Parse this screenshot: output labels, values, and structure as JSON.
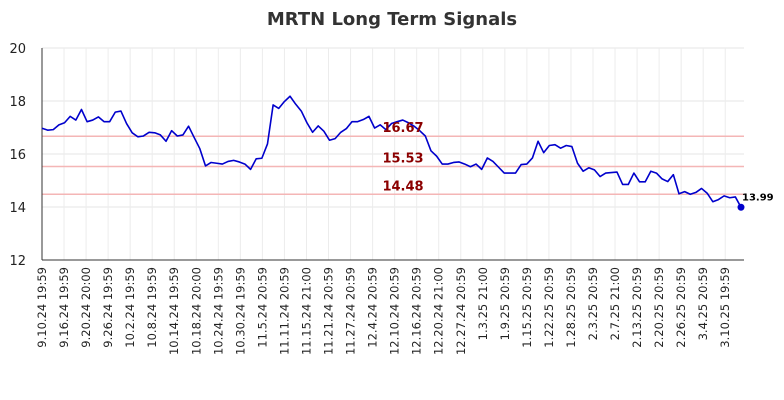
{
  "chart_data": {
    "type": "line",
    "title": "MRTN Long Term Signals",
    "ylim": [
      12,
      20
    ],
    "yticks": [
      "12",
      "14",
      "16",
      "18",
      "20"
    ],
    "xtick_labels": [
      "9.10.24 19:59",
      "9.16.24 19:59",
      "9.20.24 20:00",
      "9.26.24 19:59",
      "10.2.24 19:59",
      "10.8.24 19:59",
      "10.14.24 19:59",
      "10.18.24 20:00",
      "10.24.24 19:59",
      "10.30.24 19:59",
      "11.5.24 20:59",
      "11.11.24 20:59",
      "11.15.24 21:00",
      "11.21.24 20:59",
      "11.27.24 20:59",
      "12.4.24 20:59",
      "12.10.24 20:59",
      "12.16.24 20:59",
      "12.20.24 21:00",
      "12.27.24 20:59",
      "1.3.25 21:00",
      "1.9.25 20:59",
      "1.15.25 20:59",
      "1.22.25 20:59",
      "1.28.25 20:59",
      "2.3.25 20:59",
      "2.7.25 21:00",
      "2.13.25 20:59",
      "2.20.25 20:59",
      "2.26.25 20:59",
      "3.4.25 20:59",
      "3.10.25 19:59"
    ],
    "grid": true,
    "series": [
      {
        "color": "#0000cc",
        "values": [
          16.97,
          16.9,
          16.92,
          17.1,
          17.18,
          17.42,
          17.28,
          17.68,
          17.22,
          17.28,
          17.4,
          17.22,
          17.22,
          17.58,
          17.62,
          17.15,
          16.8,
          16.65,
          16.68,
          16.82,
          16.8,
          16.72,
          16.48,
          16.88,
          16.68,
          16.72,
          17.05,
          16.62,
          16.2,
          15.55,
          15.68,
          15.65,
          15.62,
          15.72,
          15.76,
          15.7,
          15.62,
          15.42,
          15.82,
          15.84,
          16.38,
          17.85,
          17.72,
          17.98,
          18.18,
          17.88,
          17.62,
          17.18,
          16.82,
          17.06,
          16.86,
          16.52,
          16.58,
          16.82,
          16.96,
          17.22,
          17.22,
          17.3,
          17.42,
          16.98,
          17.1,
          16.92,
          17.15,
          17.22,
          17.28,
          17.18,
          17.05,
          16.88,
          16.68,
          16.12,
          15.92,
          15.62,
          15.62,
          15.68,
          15.7,
          15.62,
          15.52,
          15.62,
          15.42,
          15.85,
          15.72,
          15.5,
          15.28,
          15.28,
          15.28,
          15.6,
          15.62,
          15.85,
          16.48,
          16.05,
          16.32,
          16.35,
          16.22,
          16.32,
          16.28,
          15.65,
          15.35,
          15.48,
          15.4,
          15.15,
          15.28,
          15.3,
          15.32,
          14.85,
          14.85,
          15.28,
          14.95,
          14.95,
          15.35,
          15.28,
          15.06,
          14.96,
          15.22,
          14.5,
          14.58,
          14.48,
          14.55,
          14.7,
          14.52,
          14.2,
          14.28,
          14.42,
          14.35,
          14.38,
          13.99
        ]
      }
    ],
    "hlines": [
      {
        "value": 16.67,
        "label": "16.67",
        "color": "#f4b6b6"
      },
      {
        "value": 15.53,
        "label": "15.53",
        "color": "#f4b6b6"
      },
      {
        "value": 14.48,
        "label": "14.48",
        "color": "#f4b6b6"
      }
    ],
    "annotation_color": "#8b0000",
    "last_point": {
      "value": 13.99,
      "label": "13.99",
      "color": "#0000cc"
    }
  }
}
